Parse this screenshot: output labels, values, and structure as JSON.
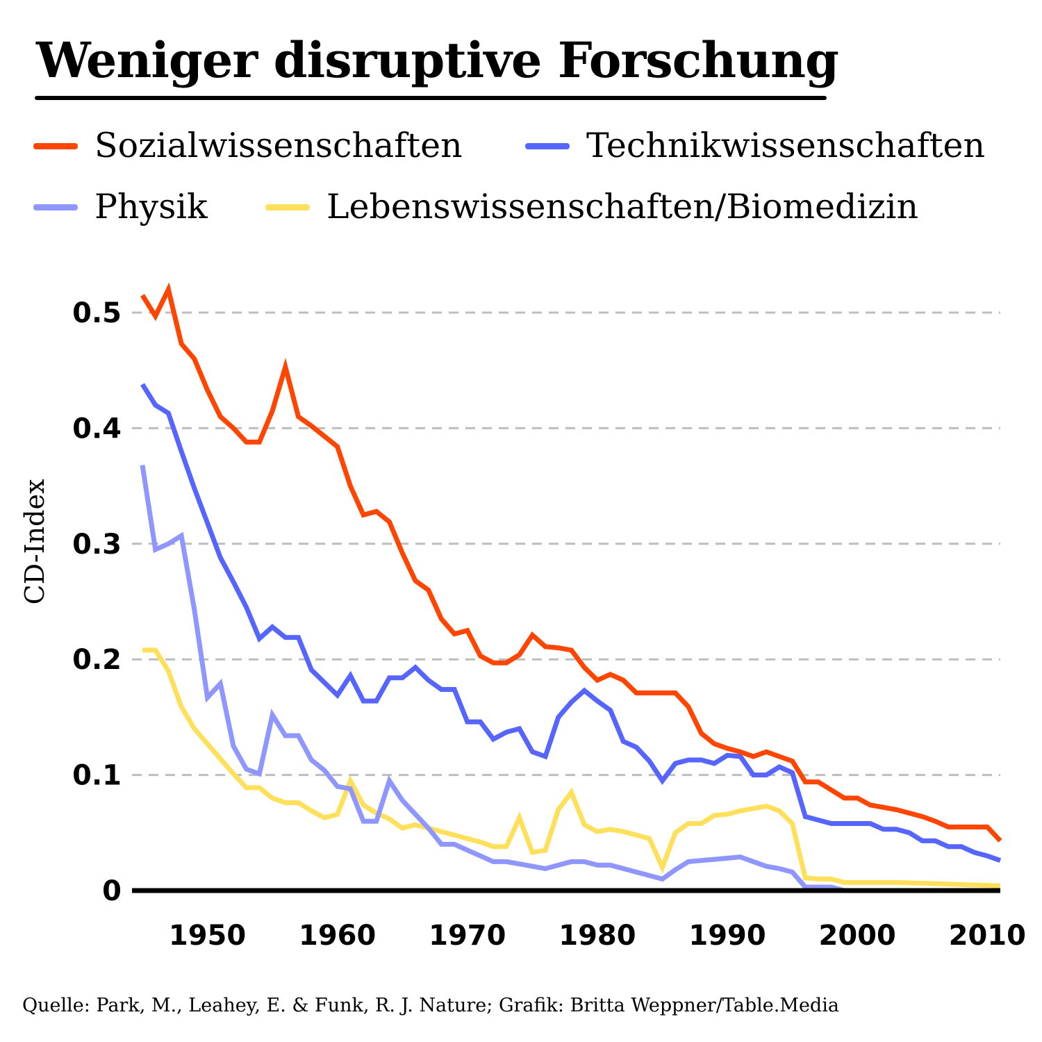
{
  "chart_data": {
    "type": "line",
    "title": "Weniger disruptive Forschung",
    "xlabel": "",
    "ylabel": "CD-Index",
    "xlim": [
      1945,
      2011
    ],
    "ylim": [
      0,
      0.5
    ],
    "yticks": [
      0,
      0.1,
      0.2,
      0.3,
      0.4,
      0.5
    ],
    "ytick_labels": [
      "0",
      "0.1",
      "0.2",
      "0.3",
      "0.4",
      "0.5"
    ],
    "xticks": [
      1950,
      1960,
      1970,
      1980,
      1990,
      2000,
      2010
    ],
    "xtick_labels": [
      "1950",
      "1960",
      "1970",
      "1980",
      "1990",
      "2000",
      "2010"
    ],
    "grid": "horizontal dashed",
    "legend_position": "top",
    "series": [
      {
        "name": "Sozialwissenschaften",
        "color": "#ff4500",
        "points": [
          [
            1945,
            0.515
          ],
          [
            1946,
            0.497
          ],
          [
            1947,
            0.52
          ],
          [
            1948,
            0.473
          ],
          [
            1949,
            0.46
          ],
          [
            1950,
            0.433
          ],
          [
            1951,
            0.41
          ],
          [
            1952,
            0.4
          ],
          [
            1953,
            0.388
          ],
          [
            1954,
            0.388
          ],
          [
            1955,
            0.415
          ],
          [
            1956,
            0.453
          ],
          [
            1957,
            0.41
          ],
          [
            1958,
            0.402
          ],
          [
            1959,
            0.393
          ],
          [
            1960,
            0.384
          ],
          [
            1961,
            0.35
          ],
          [
            1962,
            0.325
          ],
          [
            1963,
            0.328
          ],
          [
            1964,
            0.319
          ],
          [
            1965,
            0.292
          ],
          [
            1966,
            0.268
          ],
          [
            1967,
            0.26
          ],
          [
            1968,
            0.235
          ],
          [
            1969,
            0.222
          ],
          [
            1970,
            0.225
          ],
          [
            1971,
            0.203
          ],
          [
            1972,
            0.197
          ],
          [
            1973,
            0.197
          ],
          [
            1974,
            0.204
          ],
          [
            1975,
            0.221
          ],
          [
            1976,
            0.211
          ],
          [
            1977,
            0.21
          ],
          [
            1978,
            0.208
          ],
          [
            1979,
            0.193
          ],
          [
            1980,
            0.182
          ],
          [
            1981,
            0.187
          ],
          [
            1982,
            0.182
          ],
          [
            1983,
            0.171
          ],
          [
            1984,
            0.171
          ],
          [
            1985,
            0.171
          ],
          [
            1986,
            0.171
          ],
          [
            1987,
            0.159
          ],
          [
            1988,
            0.136
          ],
          [
            1989,
            0.127
          ],
          [
            1990,
            0.123
          ],
          [
            1991,
            0.12
          ],
          [
            1992,
            0.116
          ],
          [
            1993,
            0.12
          ],
          [
            1994,
            0.116
          ],
          [
            1995,
            0.112
          ],
          [
            1996,
            0.094
          ],
          [
            1997,
            0.094
          ],
          [
            1998,
            0.087
          ],
          [
            1999,
            0.08
          ],
          [
            2000,
            0.08
          ],
          [
            2001,
            0.074
          ],
          [
            2002,
            0.072
          ],
          [
            2003,
            0.07
          ],
          [
            2004,
            0.067
          ],
          [
            2005,
            0.064
          ],
          [
            2006,
            0.06
          ],
          [
            2007,
            0.055
          ],
          [
            2008,
            0.055
          ],
          [
            2009,
            0.055
          ],
          [
            2010,
            0.055
          ],
          [
            2011,
            0.043
          ]
        ]
      },
      {
        "name": "Technikwissenschaften",
        "color": "#5765ff",
        "points": [
          [
            1945,
            0.438
          ],
          [
            1946,
            0.42
          ],
          [
            1947,
            0.413
          ],
          [
            1948,
            0.38
          ],
          [
            1949,
            0.348
          ],
          [
            1950,
            0.318
          ],
          [
            1951,
            0.288
          ],
          [
            1952,
            0.267
          ],
          [
            1953,
            0.245
          ],
          [
            1954,
            0.218
          ],
          [
            1955,
            0.228
          ],
          [
            1956,
            0.219
          ],
          [
            1957,
            0.219
          ],
          [
            1958,
            0.191
          ],
          [
            1959,
            0.18
          ],
          [
            1960,
            0.169
          ],
          [
            1961,
            0.186
          ],
          [
            1962,
            0.164
          ],
          [
            1963,
            0.164
          ],
          [
            1964,
            0.184
          ],
          [
            1965,
            0.184
          ],
          [
            1966,
            0.193
          ],
          [
            1967,
            0.182
          ],
          [
            1968,
            0.174
          ],
          [
            1969,
            0.174
          ],
          [
            1970,
            0.146
          ],
          [
            1971,
            0.146
          ],
          [
            1972,
            0.131
          ],
          [
            1973,
            0.137
          ],
          [
            1974,
            0.14
          ],
          [
            1975,
            0.12
          ],
          [
            1976,
            0.116
          ],
          [
            1977,
            0.15
          ],
          [
            1978,
            0.163
          ],
          [
            1979,
            0.173
          ],
          [
            1980,
            0.164
          ],
          [
            1981,
            0.156
          ],
          [
            1982,
            0.129
          ],
          [
            1983,
            0.124
          ],
          [
            1984,
            0.112
          ],
          [
            1985,
            0.095
          ],
          [
            1986,
            0.11
          ],
          [
            1987,
            0.113
          ],
          [
            1988,
            0.113
          ],
          [
            1989,
            0.11
          ],
          [
            1990,
            0.117
          ],
          [
            1991,
            0.116
          ],
          [
            1992,
            0.1
          ],
          [
            1993,
            0.1
          ],
          [
            1994,
            0.107
          ],
          [
            1995,
            0.102
          ],
          [
            1996,
            0.064
          ],
          [
            1997,
            0.061
          ],
          [
            1998,
            0.058
          ],
          [
            1999,
            0.058
          ],
          [
            2000,
            0.058
          ],
          [
            2001,
            0.058
          ],
          [
            2002,
            0.053
          ],
          [
            2003,
            0.053
          ],
          [
            2004,
            0.05
          ],
          [
            2005,
            0.043
          ],
          [
            2006,
            0.043
          ],
          [
            2007,
            0.038
          ],
          [
            2008,
            0.038
          ],
          [
            2009,
            0.033
          ],
          [
            2010,
            0.03
          ],
          [
            2011,
            0.026
          ]
        ]
      },
      {
        "name": "Physik",
        "color": "#8f96ff",
        "points": [
          [
            1945,
            0.368
          ],
          [
            1946,
            0.295
          ],
          [
            1947,
            0.3
          ],
          [
            1948,
            0.307
          ],
          [
            1949,
            0.243
          ],
          [
            1950,
            0.167
          ],
          [
            1951,
            0.179
          ],
          [
            1952,
            0.125
          ],
          [
            1953,
            0.105
          ],
          [
            1954,
            0.101
          ],
          [
            1955,
            0.152
          ],
          [
            1956,
            0.134
          ],
          [
            1957,
            0.134
          ],
          [
            1958,
            0.113
          ],
          [
            1959,
            0.104
          ],
          [
            1960,
            0.09
          ],
          [
            1961,
            0.088
          ],
          [
            1962,
            0.06
          ],
          [
            1963,
            0.06
          ],
          [
            1964,
            0.095
          ],
          [
            1965,
            0.078
          ],
          [
            1966,
            0.066
          ],
          [
            1967,
            0.054
          ],
          [
            1968,
            0.04
          ],
          [
            1969,
            0.04
          ],
          [
            1970,
            0.035
          ],
          [
            1971,
            0.03
          ],
          [
            1972,
            0.025
          ],
          [
            1973,
            0.025
          ],
          [
            1974,
            0.023
          ],
          [
            1975,
            0.021
          ],
          [
            1976,
            0.019
          ],
          [
            1977,
            0.022
          ],
          [
            1978,
            0.025
          ],
          [
            1979,
            0.025
          ],
          [
            1980,
            0.022
          ],
          [
            1981,
            0.022
          ],
          [
            1982,
            0.019
          ],
          [
            1983,
            0.016
          ],
          [
            1984,
            0.013
          ],
          [
            1985,
            0.01
          ],
          [
            1986,
            0.018
          ],
          [
            1987,
            0.025
          ],
          [
            1988,
            0.026
          ],
          [
            1989,
            0.027
          ],
          [
            1990,
            0.028
          ],
          [
            1991,
            0.029
          ],
          [
            1992,
            0.025
          ],
          [
            1993,
            0.021
          ],
          [
            1994,
            0.019
          ],
          [
            1995,
            0.016
          ],
          [
            1996,
            0.003
          ],
          [
            1997,
            0.003
          ],
          [
            1998,
            0.003
          ],
          [
            1999,
            0.0
          ],
          [
            2000,
            0.0
          ],
          [
            2005,
            0.0
          ],
          [
            2011,
            0.0
          ]
        ]
      },
      {
        "name": "Lebenswissenschaften/Biomedizin",
        "color": "#ffe05c",
        "points": [
          [
            1945,
            0.208
          ],
          [
            1946,
            0.208
          ],
          [
            1947,
            0.19
          ],
          [
            1948,
            0.159
          ],
          [
            1949,
            0.14
          ],
          [
            1950,
            0.127
          ],
          [
            1951,
            0.114
          ],
          [
            1952,
            0.101
          ],
          [
            1953,
            0.089
          ],
          [
            1954,
            0.089
          ],
          [
            1955,
            0.08
          ],
          [
            1956,
            0.076
          ],
          [
            1957,
            0.076
          ],
          [
            1958,
            0.069
          ],
          [
            1959,
            0.063
          ],
          [
            1960,
            0.066
          ],
          [
            1961,
            0.095
          ],
          [
            1962,
            0.074
          ],
          [
            1963,
            0.067
          ],
          [
            1964,
            0.062
          ],
          [
            1965,
            0.054
          ],
          [
            1966,
            0.057
          ],
          [
            1967,
            0.054
          ],
          [
            1968,
            0.051
          ],
          [
            1969,
            0.048
          ],
          [
            1970,
            0.045
          ],
          [
            1971,
            0.042
          ],
          [
            1972,
            0.038
          ],
          [
            1973,
            0.038
          ],
          [
            1974,
            0.063
          ],
          [
            1975,
            0.033
          ],
          [
            1976,
            0.035
          ],
          [
            1977,
            0.07
          ],
          [
            1978,
            0.085
          ],
          [
            1979,
            0.057
          ],
          [
            1980,
            0.051
          ],
          [
            1981,
            0.053
          ],
          [
            1982,
            0.051
          ],
          [
            1983,
            0.048
          ],
          [
            1984,
            0.045
          ],
          [
            1985,
            0.02
          ],
          [
            1986,
            0.05
          ],
          [
            1987,
            0.058
          ],
          [
            1988,
            0.058
          ],
          [
            1989,
            0.065
          ],
          [
            1990,
            0.066
          ],
          [
            1991,
            0.069
          ],
          [
            1992,
            0.071
          ],
          [
            1993,
            0.073
          ],
          [
            1994,
            0.069
          ],
          [
            1995,
            0.058
          ],
          [
            1996,
            0.011
          ],
          [
            1997,
            0.01
          ],
          [
            1998,
            0.01
          ],
          [
            1999,
            0.007
          ],
          [
            2000,
            0.007
          ],
          [
            2003,
            0.007
          ],
          [
            2006,
            0.006
          ],
          [
            2011,
            0.004
          ]
        ]
      }
    ]
  },
  "legend": [
    {
      "label": "Sozialwissenschaften",
      "color": "#ff4500"
    },
    {
      "label": "Technikwissenschaften",
      "color": "#5765ff"
    },
    {
      "label": "Physik",
      "color": "#8f96ff"
    },
    {
      "label": "Lebenswissenschaften/Biomedizin",
      "color": "#ffe05c"
    }
  ],
  "source": "Quelle: Park, M., Leahey, E. & Funk, R. J. Nature; Grafik: Britta Weppner/Table.Media"
}
